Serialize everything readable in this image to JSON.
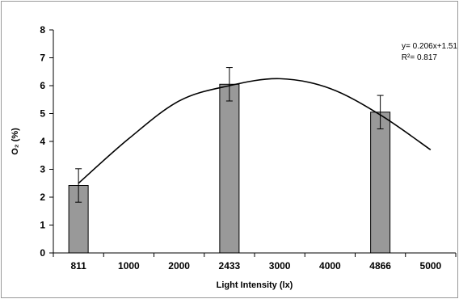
{
  "chart_data": {
    "type": "bar",
    "categories": [
      "811",
      "1000",
      "2000",
      "2433",
      "3000",
      "4000",
      "4866",
      "5000"
    ],
    "values": [
      2.42,
      null,
      null,
      6.05,
      null,
      null,
      5.05,
      null
    ],
    "errors": [
      0.6,
      null,
      null,
      0.6,
      null,
      null,
      0.6,
      null
    ],
    "xlabel": "Light Intensity (lx)",
    "ylabel": "O₂ (%)",
    "ylim": [
      0,
      8
    ],
    "yticks": [
      "0",
      "1",
      "2",
      "3",
      "4",
      "5",
      "6",
      "7",
      "8"
    ],
    "trendline": {
      "type": "polynomial-fit",
      "points": [
        {
          "x": "811",
          "y": 2.5
        },
        {
          "x": "1000",
          "y": 4.1
        },
        {
          "x": "2000",
          "y": 5.45
        },
        {
          "x": "2433",
          "y": 6.0
        },
        {
          "x": "3000",
          "y": 6.25
        },
        {
          "x": "4000",
          "y": 5.9
        },
        {
          "x": "4866",
          "y": 4.95
        },
        {
          "x": "5000",
          "y": 3.7
        }
      ]
    },
    "equation": "y= 0.206x+1.51",
    "r_squared": "R²= 0.817",
    "grid": false,
    "colors": {
      "bar": "#999999",
      "bar_stroke": "#000000",
      "axis": "#000000",
      "frame": "#999999"
    }
  }
}
